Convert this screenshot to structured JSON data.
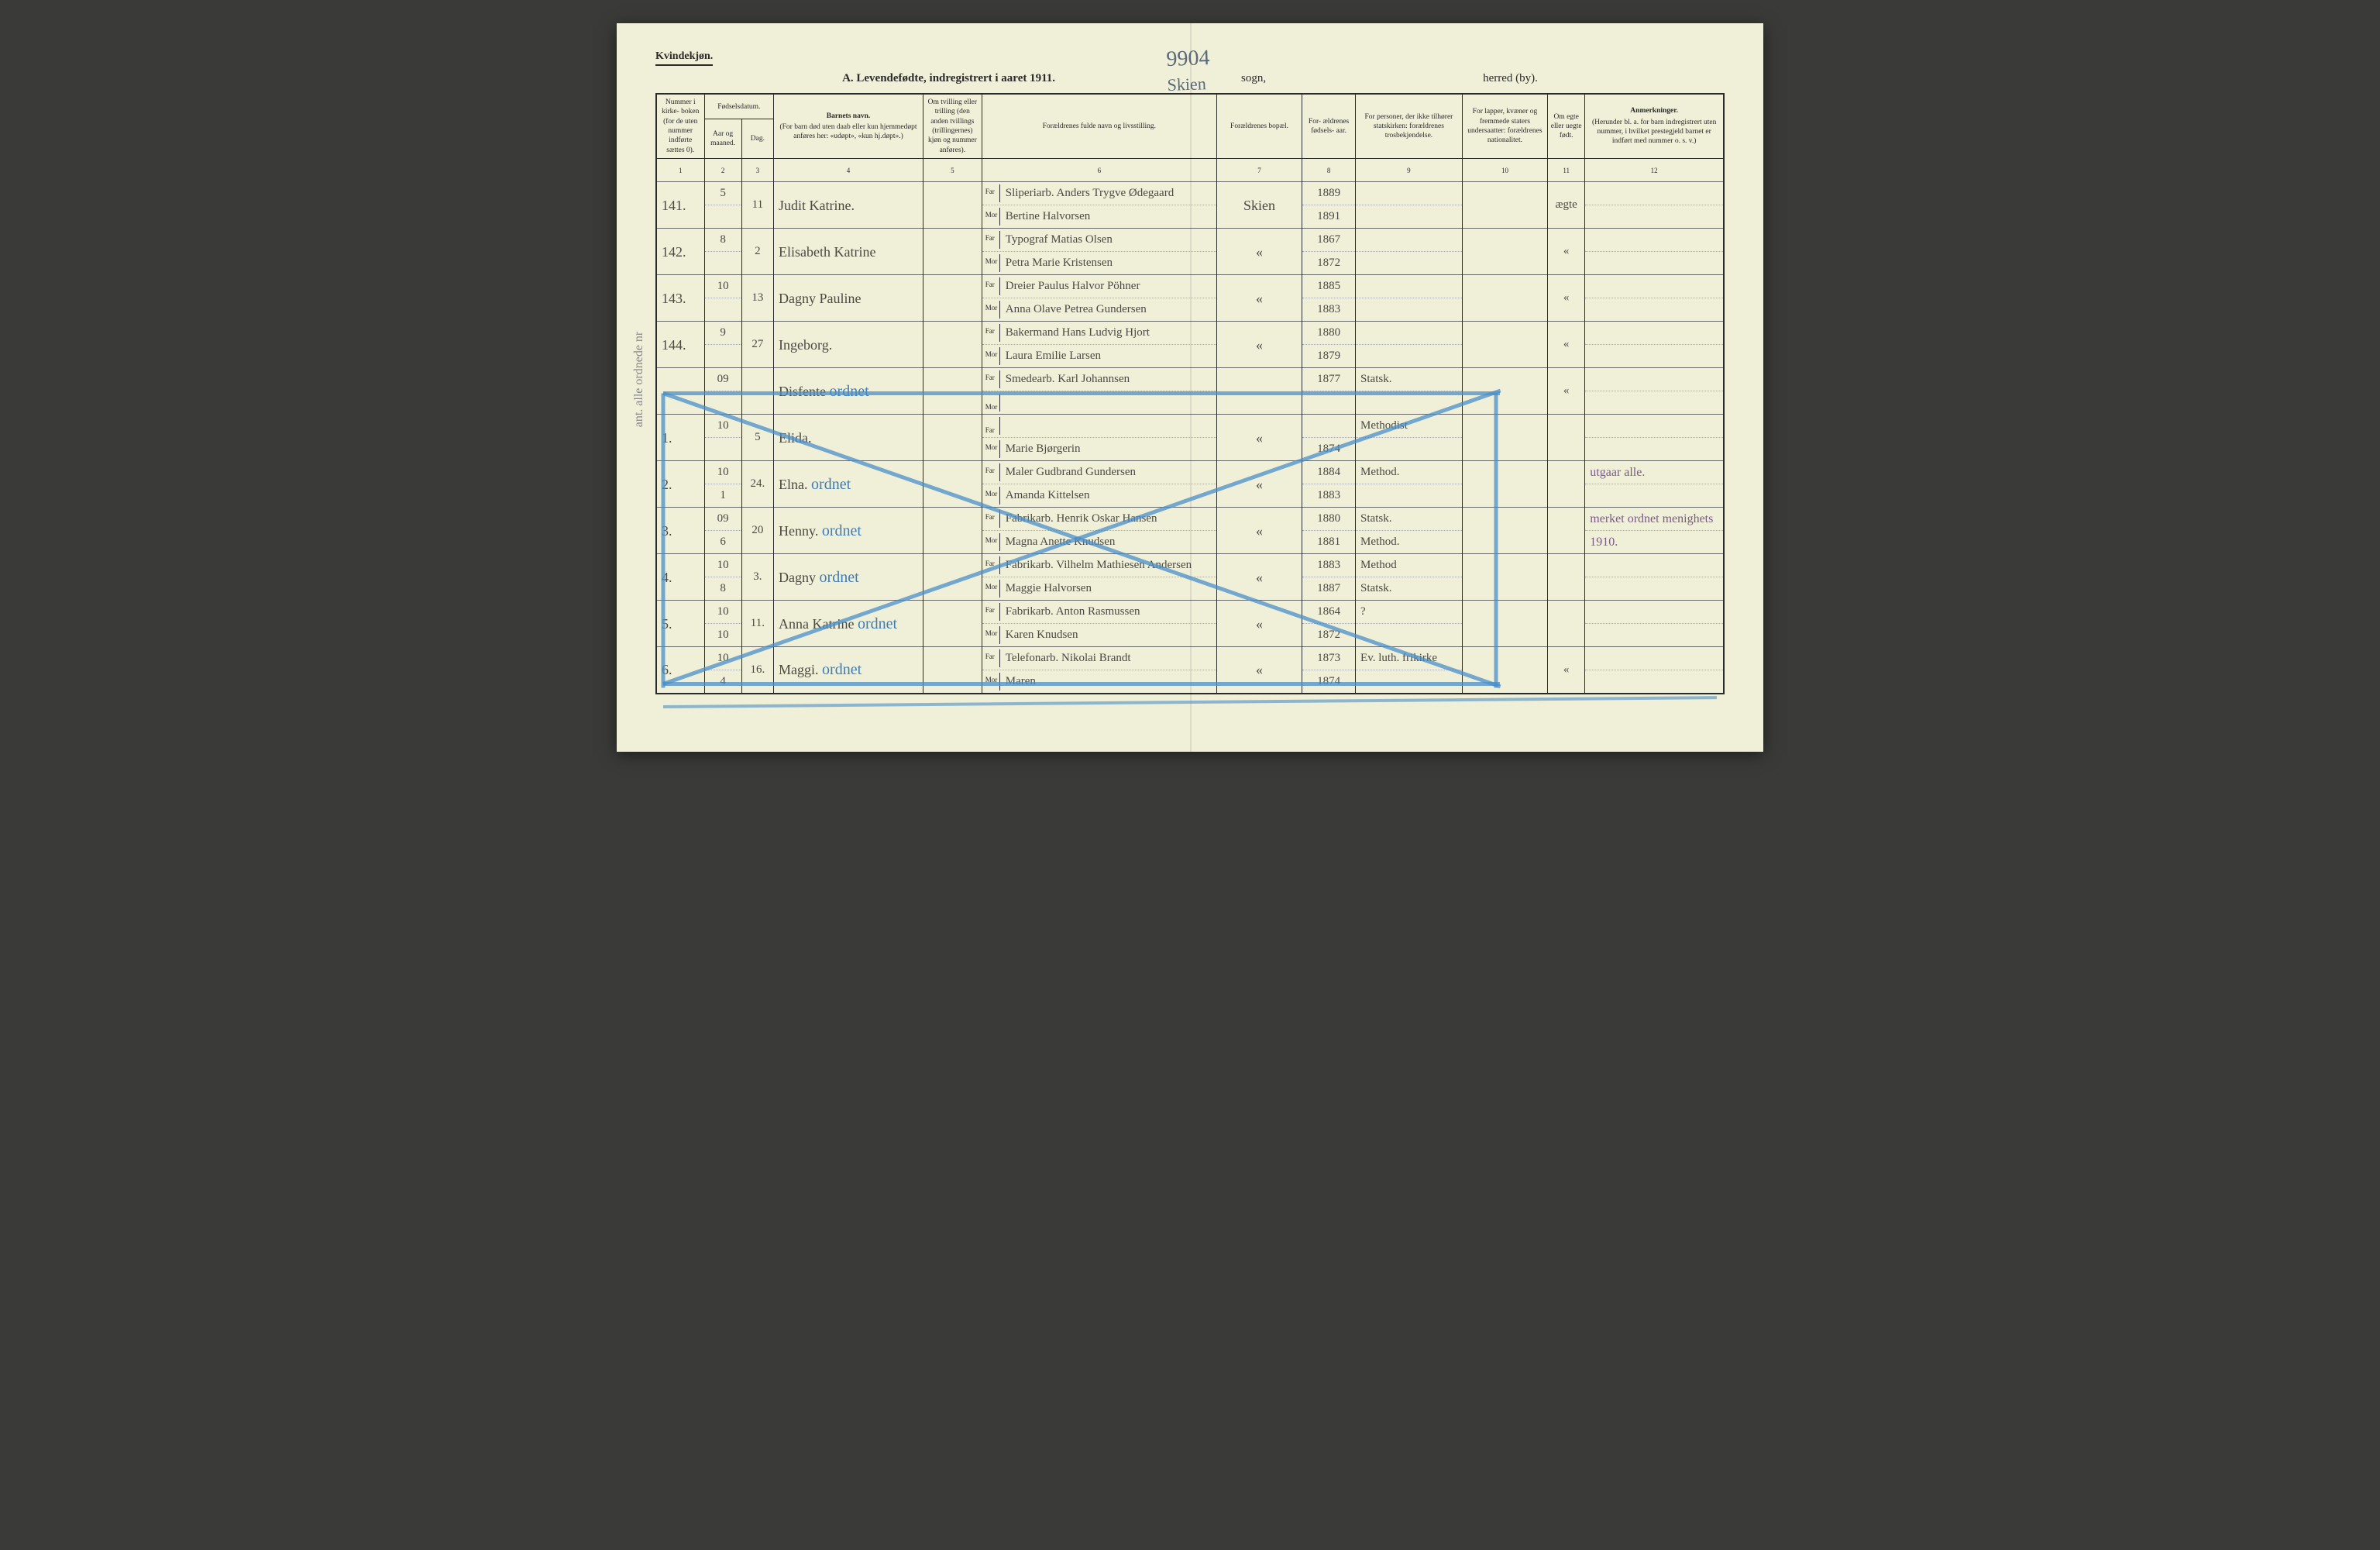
{
  "header": {
    "gender": "Kvindekjøn.",
    "title": "A. Levendefødte, indregistrert i aaret 1911.",
    "sogn_label": "sogn,",
    "herred_label": "herred (by).",
    "hand_top": "9904",
    "hand_top2": "Skien"
  },
  "columns": {
    "c1": "Nummer i kirke- boken (for de uten nummer indførte sættes 0).",
    "c2_group": "Fødselsdatum.",
    "c2": "Aar og maaned.",
    "c3": "Dag.",
    "c4_title": "Barnets navn.",
    "c4_sub": "(For barn død uten daab eller kun hjemmedøpt anføres her: «udøpt», «kun hj.døpt».)",
    "c5": "Om tvilling eller trilling (den anden tvillings (trillingernes) kjøn og nummer anføres).",
    "c6": "Forældrenes fulde navn og livsstilling.",
    "c7": "Forældrenes bopæl.",
    "c8": "For- ældrenes fødsels- aar.",
    "c9": "For personer, der ikke tilhører statskirken: forældrenes trosbekjendelse.",
    "c10": "For lapper, kvæner og fremmede staters undersaatter: forældrenes nationalitet.",
    "c11": "Om egte eller uegte født.",
    "c12_title": "Anmerkninger.",
    "c12_sub": "(Herunder bl. a. for barn indregistrert uten nummer, i hvilket prestegjeld barnet er indført med nummer o. s. v.)"
  },
  "colnums": [
    "1",
    "2",
    "3",
    "4",
    "5",
    "6",
    "7",
    "8",
    "9",
    "10",
    "11",
    "12"
  ],
  "parent_labels": {
    "far": "Far",
    "mor": "Mor"
  },
  "rows": [
    {
      "num": "141.",
      "month": "5",
      "day": "11",
      "name": "Judit Katrine.",
      "far": "Sliperiarb. Anders Trygve Ødegaard",
      "mor": "Bertine Halvorsen",
      "bopal": "Skien",
      "far_yr": "1889",
      "mor_yr": "1891",
      "c9": "",
      "c11": "ægte",
      "c12": ""
    },
    {
      "num": "142.",
      "month": "8",
      "day": "2",
      "name": "Elisabeth Katrine",
      "far": "Typograf Matias Olsen",
      "mor": "Petra Marie Kristensen",
      "bopal": "«",
      "far_yr": "1867",
      "mor_yr": "1872",
      "c9": "",
      "c11": "«",
      "c12": ""
    },
    {
      "num": "143.",
      "month": "10",
      "day": "13",
      "name": "Dagny Pauline",
      "far": "Dreier Paulus Halvor Pöhner",
      "mor": "Anna Olave Petrea Gundersen",
      "bopal": "«",
      "far_yr": "1885",
      "mor_yr": "1883",
      "c9": "",
      "c11": "«",
      "c12": ""
    },
    {
      "num": "144.",
      "month": "9",
      "day": "27",
      "name": "Ingeborg.",
      "far": "Bakermand Hans Ludvig Hjort",
      "mor": "Laura Emilie Larsen",
      "bopal": "«",
      "far_yr": "1880",
      "mor_yr": "1879",
      "c9": "",
      "c11": "«",
      "c12": ""
    },
    {
      "num": "",
      "month": "09",
      "day": "",
      "name": "Disfente",
      "far": "Smedearb. Karl Johannsen",
      "mor": "",
      "bopal": "",
      "far_yr": "1877",
      "mor_yr": "",
      "c9": "Statsk.",
      "c11": "«",
      "c12": "",
      "annot": "ordnet"
    },
    {
      "num": "1.",
      "month": "10",
      "day": "5",
      "name": "Elida.",
      "far": "",
      "mor": "Marie Bjørgerin",
      "bopal": "«",
      "far_yr": "",
      "mor_yr": "1874",
      "c9": "Methodist",
      "c11": "",
      "c12": ""
    },
    {
      "num": "2.",
      "month": "10\n1",
      "day": "24.",
      "name": "Elna.",
      "far": "Maler Gudbrand Gundersen",
      "mor": "Amanda Kittelsen",
      "bopal": "«",
      "far_yr": "1884",
      "mor_yr": "1883",
      "c9": "Method.",
      "c11": "",
      "c12": "utgaar alle.",
      "annot": "ordnet"
    },
    {
      "num": "3.",
      "month": "09\n6",
      "day": "20",
      "name": "Henny.",
      "far": "Fabrikarb. Henrik Oskar Hansen",
      "mor": "Magna Anette Knudsen",
      "bopal": "«",
      "far_yr": "1880",
      "mor_yr": "1881",
      "c9": "Statsk.\nMethod.",
      "c11": "",
      "c12": "merket ordnet menighets\n1910.",
      "annot": "ordnet"
    },
    {
      "num": "4.",
      "month": "10\n8",
      "day": "3.",
      "name": "Dagny",
      "far": "Fabrikarb. Vilhelm Mathiesen Andersen",
      "mor": "Maggie Halvorsen",
      "bopal": "«",
      "far_yr": "1883",
      "mor_yr": "1887",
      "c9": "Method\nStatsk.",
      "c11": "",
      "c12": "",
      "annot": "ordnet"
    },
    {
      "num": "5.",
      "month": "10\n10",
      "day": "11.",
      "name": "Anna Katrine",
      "far": "Fabrikarb. Anton Rasmussen",
      "mor": "Karen Knudsen",
      "bopal": "«",
      "far_yr": "1864",
      "mor_yr": "1872",
      "c9": "?",
      "c11": "",
      "c12": "",
      "annot": "ordnet"
    },
    {
      "num": "6.",
      "month": "10\n4",
      "day": "16.",
      "name": "Maggi.",
      "far": "Telefonarb. Nikolai Brandt",
      "mor": "Maren",
      "bopal": "«",
      "far_yr": "1873",
      "mor_yr": "1874",
      "c9": "Ev. luth. frikirke",
      "c11": "«",
      "c12": "",
      "annot": "ordnet"
    }
  ],
  "margin_note": "ant. alle ordnede nr",
  "styling": {
    "page_bg": "#f0efd8",
    "ink": "#2a2a2a",
    "hand_ink": "#4a4a42",
    "blue_pencil": "#4a8fc9",
    "purple_ink": "#7a5a8a",
    "gray_pencil": "#888888"
  }
}
